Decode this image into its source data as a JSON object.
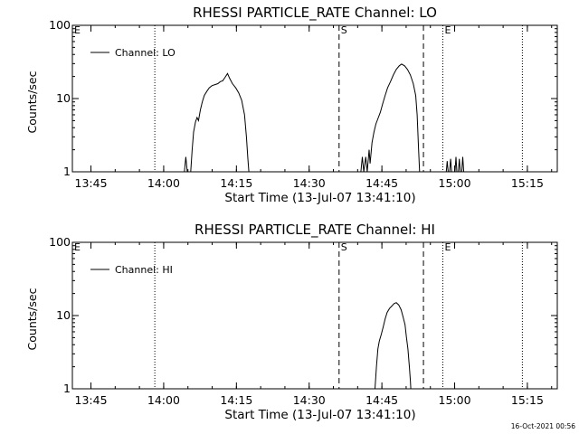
{
  "footer": {
    "timestamp": "16-Oct-2021 00:56"
  },
  "chart_data": [
    {
      "type": "line",
      "title": "RHESSI PARTICLE_RATE Channel: LO",
      "xlabel": "Start Time (13-Jul-07 13:41:10)",
      "ylabel": "Counts/sec",
      "yscale": "log",
      "ylim": [
        1,
        100
      ],
      "xlim_minutes": [
        0,
        100
      ],
      "x_ticks": [
        "13:45",
        "14:00",
        "14:15",
        "14:30",
        "14:45",
        "15:00",
        "15:15"
      ],
      "y_ticks": [
        "1",
        "10",
        "100"
      ],
      "legend": {
        "entries": [
          "Channel: LO"
        ],
        "position": "top-left"
      },
      "markers": [
        {
          "label": "E",
          "minute": 0,
          "style": "dotted"
        },
        {
          "label": "",
          "minute": 17.0,
          "style": "dotted"
        },
        {
          "label": "S",
          "minute": 55.0,
          "style": "dashed"
        },
        {
          "label": "",
          "minute": 72.4,
          "style": "dashed"
        },
        {
          "label": "E",
          "minute": 76.4,
          "style": "dotted"
        },
        {
          "label": "",
          "minute": 92.8,
          "style": "dotted"
        }
      ],
      "series": [
        {
          "name": "Channel: LO",
          "segments": [
            [
              [
                23.1,
                1
              ],
              [
                23.4,
                1.6
              ],
              [
                23.7,
                1
              ],
              [
                24.4,
                1
              ],
              [
                24.7,
                2
              ],
              [
                25,
                3.5
              ],
              [
                25.4,
                4.8
              ],
              [
                25.7,
                5.5
              ],
              [
                26,
                5
              ],
              [
                26.4,
                7
              ],
              [
                26.8,
                9
              ],
              [
                27.2,
                11
              ],
              [
                27.7,
                12.5
              ],
              [
                28.2,
                14
              ],
              [
                28.8,
                15
              ],
              [
                29.4,
                15.5
              ],
              [
                30,
                16
              ],
              [
                30.5,
                17
              ],
              [
                31,
                17.5
              ],
              [
                31.5,
                19.5
              ],
              [
                32,
                22
              ],
              [
                32.4,
                19
              ],
              [
                33,
                16
              ],
              [
                33.7,
                14
              ],
              [
                34.3,
                12
              ],
              [
                34.9,
                9.5
              ],
              [
                35.5,
                6
              ],
              [
                35.9,
                3
              ],
              [
                36.2,
                1.5
              ],
              [
                36.4,
                1
              ]
            ],
            [
              [
                59.5,
                1
              ],
              [
                59.8,
                1.6
              ],
              [
                60.1,
                1
              ],
              [
                60.5,
                1.6
              ],
              [
                60.8,
                1
              ],
              [
                61.2,
                2
              ],
              [
                61.4,
                1.3
              ],
              [
                61.8,
                2.5
              ],
              [
                62.2,
                3.5
              ],
              [
                62.6,
                4.5
              ],
              [
                63.1,
                5.5
              ],
              [
                63.5,
                6.5
              ],
              [
                64,
                8.5
              ],
              [
                64.5,
                11
              ],
              [
                65,
                14
              ],
              [
                65.6,
                17
              ],
              [
                66.2,
                21
              ],
              [
                66.8,
                25
              ],
              [
                67.4,
                28
              ],
              [
                67.9,
                29.5
              ],
              [
                68.5,
                28
              ],
              [
                69.1,
                25
              ],
              [
                69.7,
                21
              ],
              [
                70.3,
                16
              ],
              [
                70.8,
                11
              ],
              [
                71.1,
                6
              ],
              [
                71.4,
                2
              ],
              [
                71.6,
                1
              ]
            ],
            [
              [
                77.1,
                1
              ],
              [
                77.3,
                1.4
              ],
              [
                77.5,
                1
              ]
            ],
            [
              [
                77.8,
                1
              ],
              [
                78,
                1.5
              ],
              [
                78.2,
                1
              ]
            ],
            [
              [
                78.9,
                1
              ],
              [
                79.1,
                1.6
              ],
              [
                79.3,
                1
              ]
            ],
            [
              [
                79.6,
                1
              ],
              [
                79.8,
                1.5
              ],
              [
                80,
                1
              ]
            ],
            [
              [
                80.3,
                1
              ],
              [
                80.5,
                1.6
              ],
              [
                80.7,
                1
              ]
            ]
          ]
        }
      ]
    },
    {
      "type": "line",
      "title": "RHESSI PARTICLE_RATE Channel: HI",
      "xlabel": "Start Time (13-Jul-07 13:41:10)",
      "ylabel": "Counts/sec",
      "yscale": "log",
      "ylim": [
        1,
        100
      ],
      "xlim_minutes": [
        0,
        100
      ],
      "x_ticks": [
        "13:45",
        "14:00",
        "14:15",
        "14:30",
        "14:45",
        "15:00",
        "15:15"
      ],
      "y_ticks": [
        "1",
        "10",
        "100"
      ],
      "legend": {
        "entries": [
          "Channel: HI"
        ],
        "position": "top-left"
      },
      "markers": [
        {
          "label": "E",
          "minute": 0,
          "style": "dotted"
        },
        {
          "label": "",
          "minute": 17.0,
          "style": "dotted"
        },
        {
          "label": "S",
          "minute": 55.0,
          "style": "dashed"
        },
        {
          "label": "",
          "minute": 72.4,
          "style": "dashed"
        },
        {
          "label": "E",
          "minute": 76.4,
          "style": "dotted"
        },
        {
          "label": "",
          "minute": 92.8,
          "style": "dotted"
        }
      ],
      "series": [
        {
          "name": "Channel: HI",
          "segments": [
            [
              [
                62.4,
                1
              ],
              [
                62.7,
                2
              ],
              [
                63,
                3.5
              ],
              [
                63.3,
                4.5
              ],
              [
                63.7,
                5.5
              ],
              [
                64.1,
                7
              ],
              [
                64.5,
                9
              ],
              [
                64.9,
                11
              ],
              [
                65.4,
                12.5
              ],
              [
                65.9,
                13.5
              ],
              [
                66.3,
                14.5
              ],
              [
                66.8,
                15
              ],
              [
                67.3,
                14
              ],
              [
                67.8,
                12
              ],
              [
                68.2,
                9.5
              ],
              [
                68.6,
                7.5
              ],
              [
                68.9,
                5
              ],
              [
                69.2,
                3.5
              ],
              [
                69.5,
                2
              ],
              [
                69.7,
                1.3
              ],
              [
                69.8,
                1
              ]
            ]
          ]
        }
      ]
    }
  ]
}
